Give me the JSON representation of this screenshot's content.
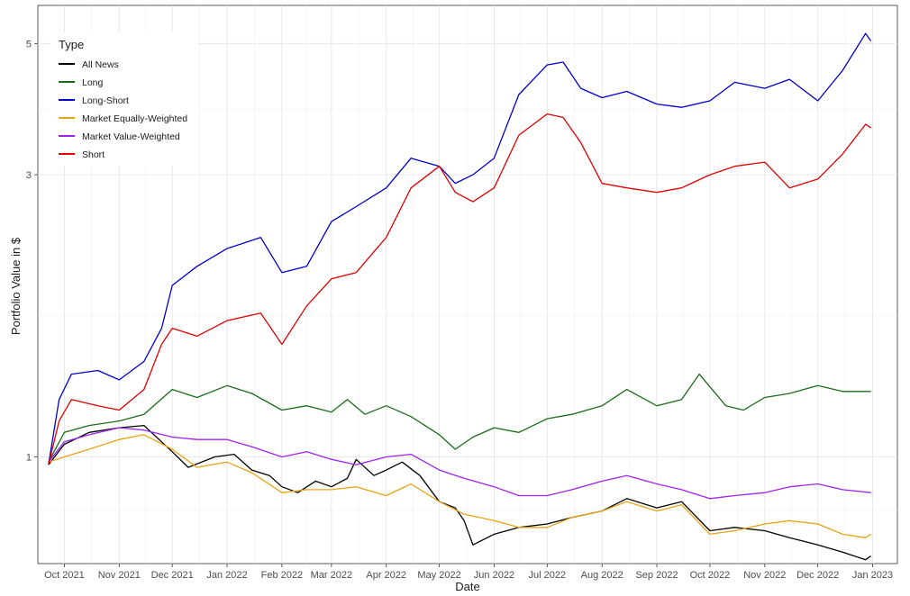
{
  "chart_data": {
    "type": "line",
    "xlabel": "Date",
    "ylabel": "Portfolio Value in $",
    "y_scale": "log",
    "ylim": [
      0.66,
      5.8
    ],
    "xlim": [
      "2021-09-16",
      "2023-01-15"
    ],
    "grid": true,
    "legend": {
      "title": "Type",
      "position": "top-left"
    },
    "y_ticks": [
      1,
      3,
      5
    ],
    "x_ticks": [
      {
        "date": "2021-10-01",
        "label": "Oct 2021"
      },
      {
        "date": "2021-11-01",
        "label": "Nov 2021"
      },
      {
        "date": "2021-12-01",
        "label": "Dec 2021"
      },
      {
        "date": "2022-01-01",
        "label": "Jan 2022"
      },
      {
        "date": "2022-02-01",
        "label": "Feb 2022"
      },
      {
        "date": "2022-03-01",
        "label": "Mar 2022"
      },
      {
        "date": "2022-04-01",
        "label": "Apr 2022"
      },
      {
        "date": "2022-05-01",
        "label": "May 2022"
      },
      {
        "date": "2022-06-01",
        "label": "Jun 2022"
      },
      {
        "date": "2022-07-01",
        "label": "Jul 2022"
      },
      {
        "date": "2022-08-01",
        "label": "Aug 2022"
      },
      {
        "date": "2022-09-01",
        "label": "Sep 2022"
      },
      {
        "date": "2022-10-01",
        "label": "Oct 2022"
      },
      {
        "date": "2022-11-01",
        "label": "Nov 2022"
      },
      {
        "date": "2022-12-01",
        "label": "Dec 2022"
      },
      {
        "date": "2023-01-01",
        "label": "Jan 2023"
      }
    ],
    "series": [
      {
        "name": "All News",
        "color": "#000000",
        "points": [
          [
            "2021-09-22",
            0.97
          ],
          [
            "2021-10-01",
            1.05
          ],
          [
            "2021-10-15",
            1.1
          ],
          [
            "2021-11-01",
            1.12
          ],
          [
            "2021-11-15",
            1.13
          ],
          [
            "2021-12-01",
            1.02
          ],
          [
            "2021-12-10",
            0.96
          ],
          [
            "2021-12-25",
            1.0
          ],
          [
            "2022-01-05",
            1.01
          ],
          [
            "2022-01-15",
            0.95
          ],
          [
            "2022-01-25",
            0.93
          ],
          [
            "2022-02-01",
            0.89
          ],
          [
            "2022-02-10",
            0.87
          ],
          [
            "2022-02-20",
            0.91
          ],
          [
            "2022-03-01",
            0.89
          ],
          [
            "2022-03-10",
            0.92
          ],
          [
            "2022-03-15",
            0.99
          ],
          [
            "2022-03-25",
            0.93
          ],
          [
            "2022-04-01",
            0.95
          ],
          [
            "2022-04-10",
            0.98
          ],
          [
            "2022-04-20",
            0.93
          ],
          [
            "2022-05-01",
            0.84
          ],
          [
            "2022-05-10",
            0.82
          ],
          [
            "2022-05-15",
            0.78
          ],
          [
            "2022-05-20",
            0.71
          ],
          [
            "2022-06-01",
            0.74
          ],
          [
            "2022-06-15",
            0.76
          ],
          [
            "2022-07-01",
            0.77
          ],
          [
            "2022-07-15",
            0.79
          ],
          [
            "2022-08-01",
            0.81
          ],
          [
            "2022-08-15",
            0.85
          ],
          [
            "2022-09-01",
            0.82
          ],
          [
            "2022-09-15",
            0.84
          ],
          [
            "2022-10-01",
            0.75
          ],
          [
            "2022-10-15",
            0.76
          ],
          [
            "2022-11-01",
            0.75
          ],
          [
            "2022-11-15",
            0.73
          ],
          [
            "2022-12-01",
            0.71
          ],
          [
            "2022-12-15",
            0.69
          ],
          [
            "2022-12-28",
            0.67
          ],
          [
            "2022-12-31",
            0.68
          ]
        ]
      },
      {
        "name": "Long",
        "color": "#1a6b1a",
        "points": [
          [
            "2021-09-22",
            0.98
          ],
          [
            "2021-10-01",
            1.1
          ],
          [
            "2021-10-15",
            1.13
          ],
          [
            "2021-11-01",
            1.15
          ],
          [
            "2021-11-15",
            1.18
          ],
          [
            "2021-12-01",
            1.3
          ],
          [
            "2021-12-15",
            1.26
          ],
          [
            "2022-01-01",
            1.32
          ],
          [
            "2022-01-15",
            1.28
          ],
          [
            "2022-02-01",
            1.2
          ],
          [
            "2022-02-15",
            1.22
          ],
          [
            "2022-03-01",
            1.19
          ],
          [
            "2022-03-10",
            1.25
          ],
          [
            "2022-03-20",
            1.18
          ],
          [
            "2022-04-01",
            1.22
          ],
          [
            "2022-04-15",
            1.17
          ],
          [
            "2022-05-01",
            1.09
          ],
          [
            "2022-05-10",
            1.03
          ],
          [
            "2022-05-20",
            1.08
          ],
          [
            "2022-06-01",
            1.12
          ],
          [
            "2022-06-15",
            1.1
          ],
          [
            "2022-07-01",
            1.16
          ],
          [
            "2022-07-15",
            1.18
          ],
          [
            "2022-08-01",
            1.22
          ],
          [
            "2022-08-15",
            1.3
          ],
          [
            "2022-09-01",
            1.22
          ],
          [
            "2022-09-15",
            1.25
          ],
          [
            "2022-09-25",
            1.38
          ],
          [
            "2022-10-10",
            1.22
          ],
          [
            "2022-10-20",
            1.2
          ],
          [
            "2022-11-01",
            1.26
          ],
          [
            "2022-11-15",
            1.28
          ],
          [
            "2022-12-01",
            1.32
          ],
          [
            "2022-12-15",
            1.29
          ],
          [
            "2022-12-31",
            1.29
          ]
        ]
      },
      {
        "name": "Long-Short",
        "color": "#0000cd",
        "points": [
          [
            "2021-09-22",
            0.97
          ],
          [
            "2021-09-28",
            1.25
          ],
          [
            "2021-10-05",
            1.38
          ],
          [
            "2021-10-20",
            1.4
          ],
          [
            "2021-11-01",
            1.35
          ],
          [
            "2021-11-15",
            1.45
          ],
          [
            "2021-11-25",
            1.65
          ],
          [
            "2021-12-01",
            1.95
          ],
          [
            "2021-12-15",
            2.1
          ],
          [
            "2022-01-01",
            2.25
          ],
          [
            "2022-01-20",
            2.35
          ],
          [
            "2022-02-01",
            2.05
          ],
          [
            "2022-02-15",
            2.1
          ],
          [
            "2022-03-01",
            2.5
          ],
          [
            "2022-03-15",
            2.65
          ],
          [
            "2022-04-01",
            2.85
          ],
          [
            "2022-04-15",
            3.2
          ],
          [
            "2022-05-01",
            3.1
          ],
          [
            "2022-05-10",
            2.9
          ],
          [
            "2022-05-20",
            3.0
          ],
          [
            "2022-06-01",
            3.2
          ],
          [
            "2022-06-15",
            4.1
          ],
          [
            "2022-07-01",
            4.6
          ],
          [
            "2022-07-10",
            4.65
          ],
          [
            "2022-07-20",
            4.2
          ],
          [
            "2022-08-01",
            4.05
          ],
          [
            "2022-08-15",
            4.15
          ],
          [
            "2022-09-01",
            3.95
          ],
          [
            "2022-09-15",
            3.9
          ],
          [
            "2022-10-01",
            4.0
          ],
          [
            "2022-10-15",
            4.3
          ],
          [
            "2022-11-01",
            4.2
          ],
          [
            "2022-11-15",
            4.35
          ],
          [
            "2022-12-01",
            4.0
          ],
          [
            "2022-12-15",
            4.5
          ],
          [
            "2022-12-28",
            5.2
          ],
          [
            "2022-12-31",
            5.05
          ]
        ]
      },
      {
        "name": "Market Equally-Weighted",
        "color": "#e8a317",
        "points": [
          [
            "2021-09-22",
            0.98
          ],
          [
            "2021-10-01",
            1.0
          ],
          [
            "2021-10-15",
            1.03
          ],
          [
            "2021-11-01",
            1.07
          ],
          [
            "2021-11-15",
            1.09
          ],
          [
            "2021-12-01",
            1.03
          ],
          [
            "2021-12-15",
            0.96
          ],
          [
            "2022-01-01",
            0.98
          ],
          [
            "2022-01-15",
            0.94
          ],
          [
            "2022-02-01",
            0.87
          ],
          [
            "2022-02-15",
            0.88
          ],
          [
            "2022-03-01",
            0.88
          ],
          [
            "2022-03-15",
            0.89
          ],
          [
            "2022-04-01",
            0.86
          ],
          [
            "2022-04-15",
            0.9
          ],
          [
            "2022-05-01",
            0.84
          ],
          [
            "2022-05-15",
            0.8
          ],
          [
            "2022-06-01",
            0.78
          ],
          [
            "2022-06-15",
            0.76
          ],
          [
            "2022-07-01",
            0.76
          ],
          [
            "2022-07-15",
            0.79
          ],
          [
            "2022-08-01",
            0.81
          ],
          [
            "2022-08-15",
            0.84
          ],
          [
            "2022-09-01",
            0.81
          ],
          [
            "2022-09-15",
            0.83
          ],
          [
            "2022-10-01",
            0.74
          ],
          [
            "2022-10-15",
            0.75
          ],
          [
            "2022-11-01",
            0.77
          ],
          [
            "2022-11-15",
            0.78
          ],
          [
            "2022-12-01",
            0.77
          ],
          [
            "2022-12-15",
            0.74
          ],
          [
            "2022-12-28",
            0.73
          ],
          [
            "2022-12-31",
            0.74
          ]
        ]
      },
      {
        "name": "Market Value-Weighted",
        "color": "#a020f0",
        "points": [
          [
            "2021-09-22",
            0.98
          ],
          [
            "2021-10-01",
            1.06
          ],
          [
            "2021-10-15",
            1.09
          ],
          [
            "2021-11-01",
            1.12
          ],
          [
            "2021-11-15",
            1.11
          ],
          [
            "2021-12-01",
            1.08
          ],
          [
            "2021-12-15",
            1.07
          ],
          [
            "2022-01-01",
            1.07
          ],
          [
            "2022-01-15",
            1.04
          ],
          [
            "2022-02-01",
            1.0
          ],
          [
            "2022-02-15",
            1.02
          ],
          [
            "2022-03-01",
            0.99
          ],
          [
            "2022-03-15",
            0.97
          ],
          [
            "2022-04-01",
            1.0
          ],
          [
            "2022-04-15",
            1.01
          ],
          [
            "2022-05-01",
            0.95
          ],
          [
            "2022-05-15",
            0.92
          ],
          [
            "2022-06-01",
            0.89
          ],
          [
            "2022-06-15",
            0.86
          ],
          [
            "2022-07-01",
            0.86
          ],
          [
            "2022-07-15",
            0.88
          ],
          [
            "2022-08-01",
            0.91
          ],
          [
            "2022-08-15",
            0.93
          ],
          [
            "2022-09-01",
            0.9
          ],
          [
            "2022-09-15",
            0.88
          ],
          [
            "2022-10-01",
            0.85
          ],
          [
            "2022-10-15",
            0.86
          ],
          [
            "2022-11-01",
            0.87
          ],
          [
            "2022-11-15",
            0.89
          ],
          [
            "2022-12-01",
            0.9
          ],
          [
            "2022-12-15",
            0.88
          ],
          [
            "2022-12-31",
            0.87
          ]
        ]
      },
      {
        "name": "Short",
        "color": "#e00000",
        "points": [
          [
            "2021-09-22",
            0.97
          ],
          [
            "2021-09-28",
            1.15
          ],
          [
            "2021-10-05",
            1.25
          ],
          [
            "2021-10-20",
            1.22
          ],
          [
            "2021-11-01",
            1.2
          ],
          [
            "2021-11-15",
            1.3
          ],
          [
            "2021-11-25",
            1.55
          ],
          [
            "2021-12-01",
            1.65
          ],
          [
            "2021-12-15",
            1.6
          ],
          [
            "2022-01-01",
            1.7
          ],
          [
            "2022-01-20",
            1.75
          ],
          [
            "2022-02-01",
            1.55
          ],
          [
            "2022-02-15",
            1.8
          ],
          [
            "2022-03-01",
            2.0
          ],
          [
            "2022-03-15",
            2.05
          ],
          [
            "2022-04-01",
            2.35
          ],
          [
            "2022-04-15",
            2.85
          ],
          [
            "2022-05-01",
            3.1
          ],
          [
            "2022-05-10",
            2.8
          ],
          [
            "2022-05-20",
            2.7
          ],
          [
            "2022-06-01",
            2.85
          ],
          [
            "2022-06-15",
            3.5
          ],
          [
            "2022-07-01",
            3.8
          ],
          [
            "2022-07-10",
            3.75
          ],
          [
            "2022-07-20",
            3.4
          ],
          [
            "2022-08-01",
            2.9
          ],
          [
            "2022-08-15",
            2.85
          ],
          [
            "2022-09-01",
            2.8
          ],
          [
            "2022-09-15",
            2.85
          ],
          [
            "2022-10-01",
            3.0
          ],
          [
            "2022-10-15",
            3.1
          ],
          [
            "2022-11-01",
            3.15
          ],
          [
            "2022-11-15",
            2.85
          ],
          [
            "2022-12-01",
            2.95
          ],
          [
            "2022-12-15",
            3.25
          ],
          [
            "2022-12-28",
            3.65
          ],
          [
            "2022-12-31",
            3.6
          ]
        ]
      }
    ]
  }
}
